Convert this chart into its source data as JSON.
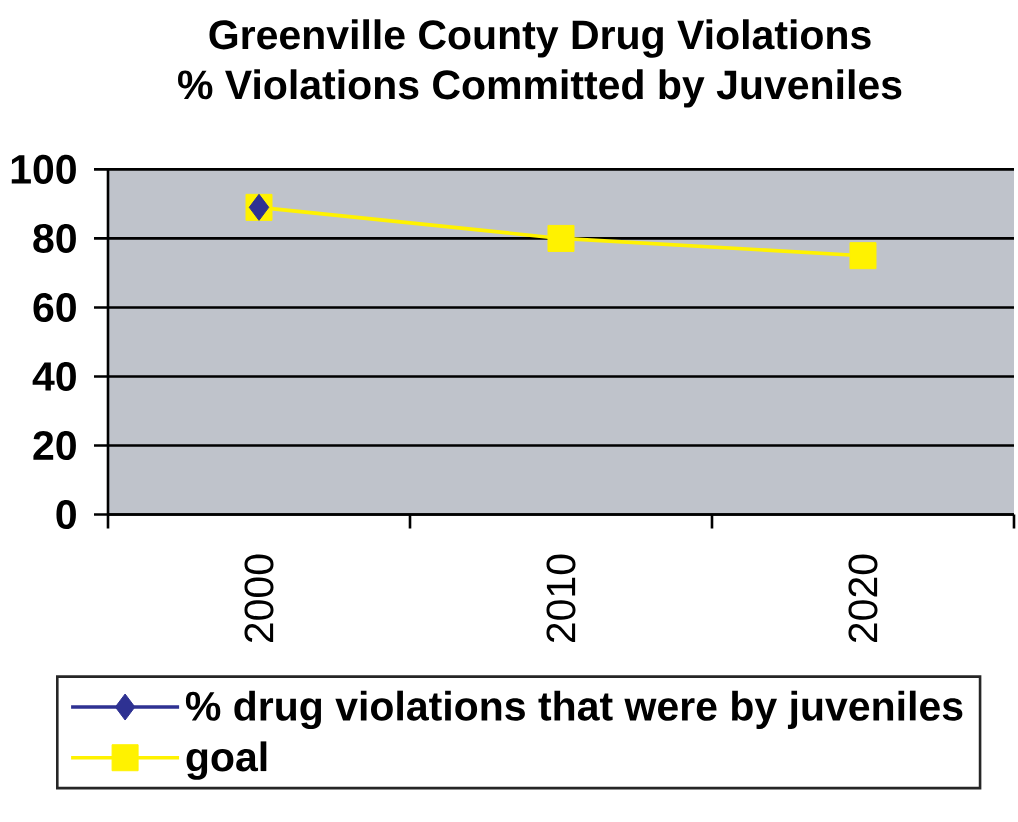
{
  "chart_data": {
    "type": "line",
    "title": "Greenville County Drug Violations",
    "subtitle": "% Violations Committed by Juveniles",
    "categories": [
      "2000",
      "2010",
      "2020"
    ],
    "series": [
      {
        "name": "% drug violations that were by juveniles",
        "color": "#2e3192",
        "marker": "diamond",
        "values": [
          89,
          null,
          null
        ]
      },
      {
        "name": "goal",
        "color": "#fff200",
        "marker": "square",
        "values": [
          89,
          80,
          75
        ]
      }
    ],
    "ylim": [
      0,
      100
    ],
    "yticks": [
      0,
      20,
      40,
      60,
      80,
      100
    ],
    "grid": "y",
    "legend": "bottom"
  }
}
